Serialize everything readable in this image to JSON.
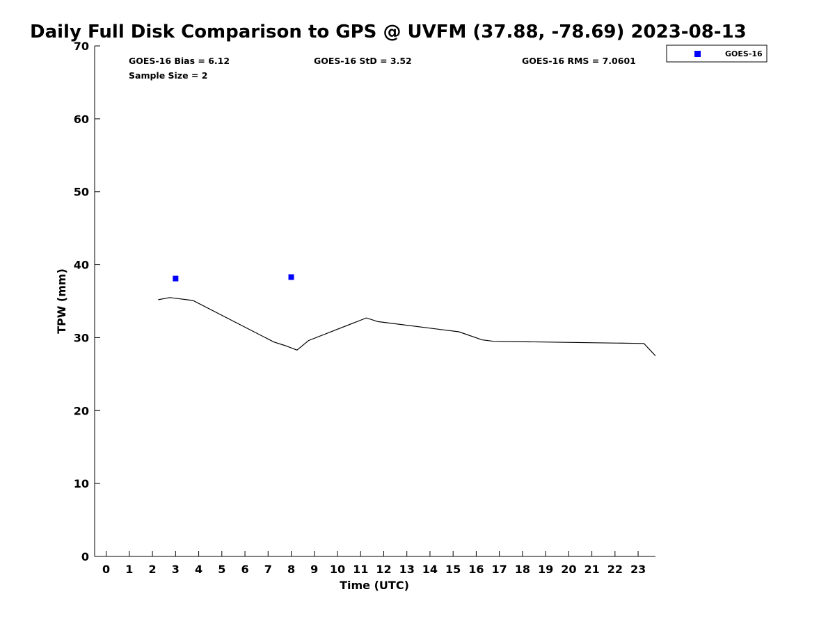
{
  "colors": {
    "background": "#ffffff",
    "axis": "#000000",
    "gps_line": "#000000",
    "goes16_marker": "#0000ff"
  },
  "chart_data": {
    "type": "line",
    "title": "Daily Full Disk Comparison to GPS @ UVFM (37.88, -78.69) 2023-08-13",
    "xlabel": "Time (UTC)",
    "ylabel": "TPW (mm)",
    "xlim": [
      -0.5,
      23.75
    ],
    "ylim": [
      0,
      70
    ],
    "x_ticks": [
      0,
      1,
      2,
      3,
      4,
      5,
      6,
      7,
      8,
      9,
      10,
      11,
      12,
      13,
      14,
      15,
      16,
      17,
      18,
      19,
      20,
      21,
      22,
      23
    ],
    "y_ticks": [
      0,
      10,
      20,
      30,
      40,
      50,
      60,
      70
    ],
    "grid": false,
    "legend_position": "top-right, outside plot",
    "series": [
      {
        "type": "line",
        "x": [
          2.25,
          2.75,
          3.75,
          7.25,
          7.75,
          8.25,
          8.75,
          11.25,
          11.75,
          15.25,
          16.25,
          16.75,
          23.25,
          23.75
        ],
        "values": [
          35.2,
          35.5,
          35.1,
          29.4,
          28.9,
          28.3,
          29.6,
          32.7,
          32.2,
          30.8,
          29.7,
          29.5,
          29.2,
          27.5
        ]
      },
      {
        "name": "GOES-16",
        "type": "scatter",
        "x": [
          3.0,
          8.0
        ],
        "values": [
          38.1,
          38.3
        ]
      }
    ],
    "annotations": {
      "bias": "GOES-16 Bias = 6.12",
      "std": "GOES-16 StD = 3.52",
      "rms": "GOES-16 RMS = 7.0601",
      "sample_size": "Sample Size = 2"
    }
  }
}
